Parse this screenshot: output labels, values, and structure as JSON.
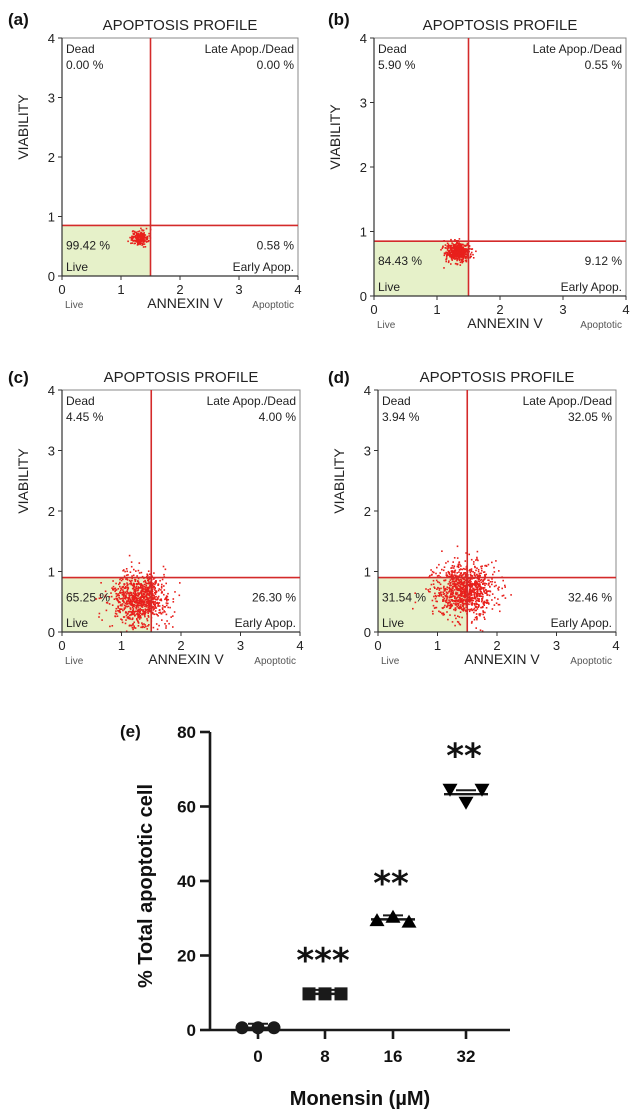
{
  "chart_data": [
    {
      "type": "scatter",
      "panel": "(a)",
      "title": "APOPTOSIS PROFILE",
      "xlabel": "ANNEXIN V",
      "ylabel": "VIABILITY",
      "x_left_note": "Live",
      "x_right_note": "Apoptotic",
      "xlim": [
        0,
        4
      ],
      "ylim": [
        0,
        4
      ],
      "x_ticks": [
        "0",
        "1",
        "2",
        "3",
        "4"
      ],
      "y_ticks": [
        "0",
        "1",
        "2",
        "3",
        "4"
      ],
      "gate": {
        "x": 1.5,
        "y": 0.85
      },
      "quadrants": {
        "dead": {
          "label": "Dead",
          "value": "0.00 %"
        },
        "late": {
          "label": "Late Apop./Dead",
          "value": "0.00 %"
        },
        "live": {
          "label": "Live",
          "value": "99.42 %"
        },
        "early": {
          "label": "Early Apop.",
          "value": "0.58 %"
        }
      },
      "cluster": {
        "cx": 1.3,
        "cy": 0.65,
        "sx": 0.07,
        "sy": 0.06,
        "count": 220
      }
    },
    {
      "type": "scatter",
      "panel": "(b)",
      "title": "APOPTOSIS PROFILE",
      "xlabel": "ANNEXIN V",
      "ylabel": "VIABILITY",
      "x_left_note": "Live",
      "x_right_note": "Apoptotic",
      "xlim": [
        0,
        4
      ],
      "ylim": [
        0,
        4
      ],
      "x_ticks": [
        "0",
        "1",
        "2",
        "3",
        "4"
      ],
      "y_ticks": [
        "0",
        "1",
        "2",
        "3",
        "4"
      ],
      "gate": {
        "x": 1.5,
        "y": 0.85
      },
      "quadrants": {
        "dead": {
          "label": "Dead",
          "value": "5.90 %"
        },
        "late": {
          "label": "Late Apop./Dead",
          "value": "0.55 %"
        },
        "live": {
          "label": "Live",
          "value": "84.43 %"
        },
        "early": {
          "label": "Early Apop.",
          "value": "9.12 %"
        }
      },
      "cluster": {
        "cx": 1.32,
        "cy": 0.7,
        "sx": 0.09,
        "sy": 0.07,
        "count": 520
      }
    },
    {
      "type": "scatter",
      "panel": "(c)",
      "title": "APOPTOSIS PROFILE",
      "xlabel": "ANNEXIN V",
      "ylabel": "VIABILITY",
      "x_left_note": "Live",
      "x_right_note": "Apoptotic",
      "xlim": [
        0,
        4
      ],
      "ylim": [
        0,
        4
      ],
      "x_ticks": [
        "0",
        "1",
        "2",
        "3",
        "4"
      ],
      "y_ticks": [
        "0",
        "1",
        "2",
        "3",
        "4"
      ],
      "gate": {
        "x": 1.5,
        "y": 0.9
      },
      "quadrants": {
        "dead": {
          "label": "Dead",
          "value": "4.45 %"
        },
        "late": {
          "label": "Late Apop./Dead",
          "value": "4.00 %"
        },
        "live": {
          "label": "Live",
          "value": "65.25 %"
        },
        "early": {
          "label": "Early Apop.",
          "value": "26.30 %"
        }
      },
      "cluster": {
        "cx": 1.3,
        "cy": 0.55,
        "sx": 0.24,
        "sy": 0.22,
        "count": 900
      }
    },
    {
      "type": "scatter",
      "panel": "(d)",
      "title": "APOPTOSIS PROFILE",
      "xlabel": "ANNEXIN V",
      "ylabel": "VIABILITY",
      "x_left_note": "Live",
      "x_right_note": "Apoptotic",
      "xlim": [
        0,
        4
      ],
      "ylim": [
        0,
        4
      ],
      "x_ticks": [
        "0",
        "1",
        "2",
        "3",
        "4"
      ],
      "y_ticks": [
        "0",
        "1",
        "2",
        "3",
        "4"
      ],
      "gate": {
        "x": 1.5,
        "y": 0.9
      },
      "quadrants": {
        "dead": {
          "label": "Dead",
          "value": "3.94 %"
        },
        "late": {
          "label": "Late Apop./Dead",
          "value": "32.05 %"
        },
        "live": {
          "label": "Live",
          "value": "31.54 %"
        },
        "early": {
          "label": "Early Apop.",
          "value": "32.46 %"
        }
      },
      "cluster": {
        "cx": 1.45,
        "cy": 0.7,
        "sx": 0.25,
        "sy": 0.22,
        "count": 1000
      }
    },
    {
      "type": "scatter",
      "panel": "(e)",
      "title": "",
      "xlabel": "Monensin (µM)",
      "ylabel": "% Total apoptotic cell",
      "categories": [
        "0",
        "8",
        "16",
        "32"
      ],
      "ylim": [
        0,
        80
      ],
      "y_ticks": [
        0,
        20,
        40,
        60,
        80
      ],
      "series": [
        {
          "category": "0",
          "marker": "circle",
          "values": [
            0.6,
            0.6,
            0.6
          ],
          "mean": 0.6,
          "significance": ""
        },
        {
          "category": "8",
          "marker": "square",
          "values": [
            9.7,
            9.7,
            9.7
          ],
          "mean": 9.7,
          "significance": "***"
        },
        {
          "category": "16",
          "marker": "triangle-up",
          "values": [
            29.5,
            30.4,
            29.1
          ],
          "mean": 29.7,
          "significance": "**"
        },
        {
          "category": "32",
          "marker": "triangle-down",
          "values": [
            64.5,
            61.0,
            64.5
          ],
          "mean": 63.3,
          "significance": "**"
        }
      ]
    }
  ],
  "colors": {
    "gate_line": "#d42a2a",
    "live_fill": "#e6f1c9",
    "events": "#e8201c",
    "axis": "#1a1a1a"
  }
}
